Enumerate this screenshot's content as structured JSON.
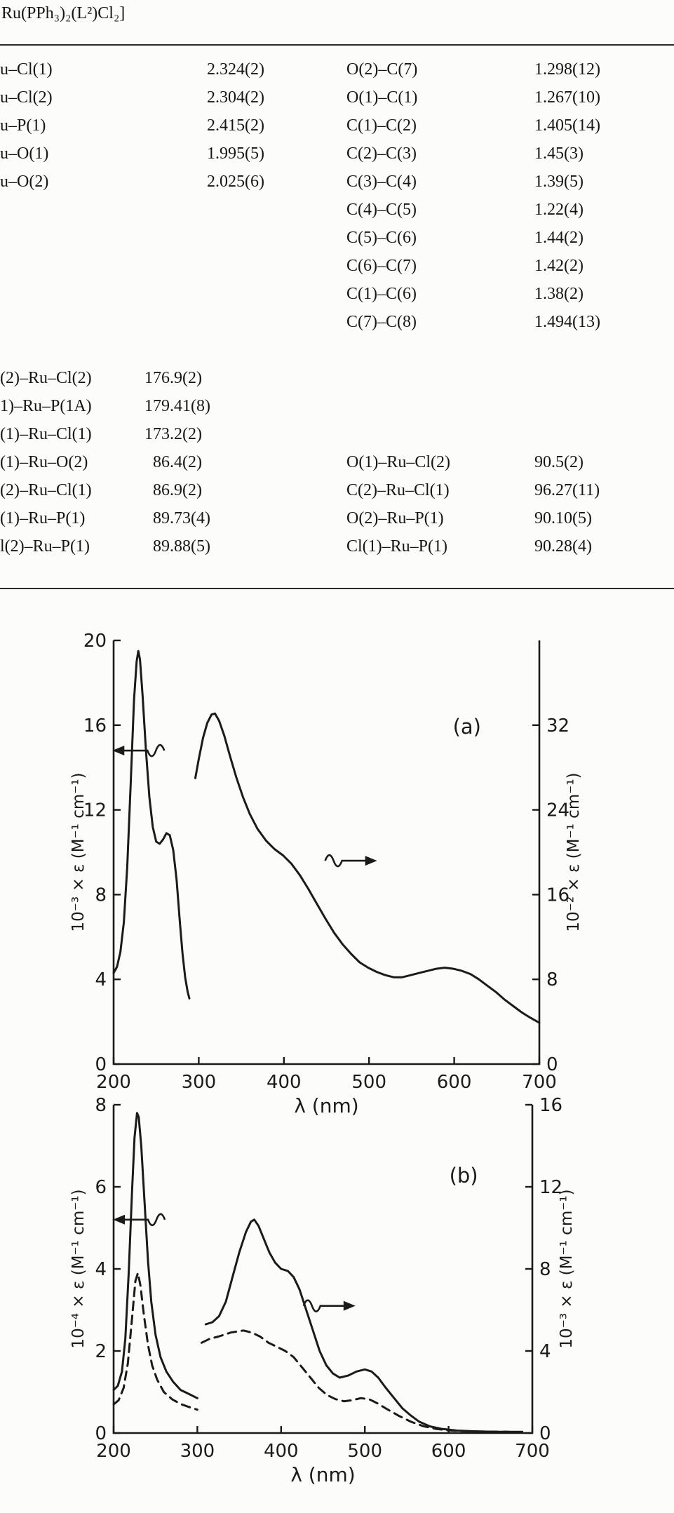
{
  "page": {
    "caption": "Ru(PPh₃)₂(L²)Cl₂]"
  },
  "bond_table": {
    "lengths_rows": [
      {
        "l1": "u–Cl(1)",
        "v1": "2.324(2)",
        "l2": "O(2)–C(7)",
        "v2": "1.298(12)"
      },
      {
        "l1": "u–Cl(2)",
        "v1": "2.304(2)",
        "l2": "O(1)–C(1)",
        "v2": "1.267(10)"
      },
      {
        "l1": "u–P(1)",
        "v1": "2.415(2)",
        "l2": "C(1)–C(2)",
        "v2": "1.405(14)"
      },
      {
        "l1": "u–O(1)",
        "v1": "1.995(5)",
        "l2": "C(2)–C(3)",
        "v2": "1.45(3)"
      },
      {
        "l1": "u–O(2)",
        "v1": "2.025(6)",
        "l2": "C(3)–C(4)",
        "v2": "1.39(5)"
      },
      {
        "l1": "",
        "v1": "",
        "l2": "C(4)–C(5)",
        "v2": "1.22(4)"
      },
      {
        "l1": "",
        "v1": "",
        "l2": "C(5)–C(6)",
        "v2": "1.44(2)"
      },
      {
        "l1": "",
        "v1": "",
        "l2": "C(6)–C(7)",
        "v2": "1.42(2)"
      },
      {
        "l1": "",
        "v1": "",
        "l2": "C(1)–C(6)",
        "v2": "1.38(2)"
      },
      {
        "l1": "",
        "v1": "",
        "l2": "C(7)–C(8)",
        "v2": "1.494(13)"
      }
    ],
    "angles_rows": [
      {
        "l1": "(2)–Ru–Cl(2)",
        "v1": "176.9(2)",
        "l2": "",
        "v2": ""
      },
      {
        "l1": "1)–Ru–P(1A)",
        "v1": "179.41(8)",
        "l2": "",
        "v2": ""
      },
      {
        "l1": "(1)–Ru–Cl(1)",
        "v1": "173.2(2)",
        "l2": "",
        "v2": ""
      },
      {
        "l1": "(1)–Ru–O(2)",
        "v1": " 86.4(2)",
        "l2": "O(1)–Ru–Cl(2)",
        "v2": "90.5(2)"
      },
      {
        "l1": "(2)–Ru–Cl(1)",
        "v1": " 86.9(2)",
        "l2": "C(2)–Ru–Cl(1)",
        "v2": "96.27(11)"
      },
      {
        "l1": "(1)–Ru–P(1)",
        "v1": " 89.73(4)",
        "l2": "O(2)–Ru–P(1)",
        "v2": "90.10(5)"
      },
      {
        "l1": "l(2)–Ru–P(1)",
        "v1": " 89.88(5)",
        "l2": "Cl(1)–Ru–P(1)",
        "v2": "90.28(4)"
      }
    ]
  },
  "chart_data": [
    {
      "type": "line",
      "x_axis": {
        "label": "λ (nm)",
        "lim": [
          200,
          700
        ],
        "ticks": [
          200,
          300,
          400,
          500,
          600,
          700
        ]
      },
      "left_axis": {
        "label": "10⁻³ × ε (M⁻¹ cm⁻¹)",
        "lim": [
          0,
          20
        ],
        "ticks": [
          0,
          4,
          8,
          12,
          16,
          20
        ]
      },
      "right_axis": {
        "label": "10⁻² × ε (M⁻¹ cm⁻¹)",
        "lim": [
          0,
          40
        ],
        "ticks": [
          0,
          8,
          16,
          24,
          32
        ]
      },
      "series": [
        {
          "name": "uv-band-left-scale",
          "axis": "left",
          "style": "solid",
          "points": [
            [
              200,
              4.3
            ],
            [
              204,
              4.6
            ],
            [
              208,
              5.3
            ],
            [
              212,
              6.7
            ],
            [
              216,
              9.3
            ],
            [
              220,
              13.2
            ],
            [
              224,
              17.2
            ],
            [
              227,
              19.0
            ],
            [
              229,
              19.5
            ],
            [
              231,
              19.1
            ],
            [
              234,
              17.4
            ],
            [
              238,
              14.8
            ],
            [
              242,
              12.6
            ],
            [
              246,
              11.2
            ],
            [
              250,
              10.5
            ],
            [
              254,
              10.4
            ],
            [
              258,
              10.6
            ],
            [
              262,
              10.9
            ],
            [
              266,
              10.8
            ],
            [
              270,
              10.1
            ],
            [
              274,
              8.7
            ],
            [
              278,
              6.6
            ],
            [
              281,
              5.2
            ],
            [
              284,
              4.1
            ],
            [
              287,
              3.4
            ],
            [
              289,
              3.1
            ]
          ]
        },
        {
          "name": "vis-band-right-scale",
          "axis": "right",
          "style": "solid",
          "points": [
            [
              296,
              27.0
            ],
            [
              300,
              28.8
            ],
            [
              305,
              30.8
            ],
            [
              310,
              32.2
            ],
            [
              315,
              33.0
            ],
            [
              319,
              33.1
            ],
            [
              324,
              32.4
            ],
            [
              330,
              31.0
            ],
            [
              337,
              29.0
            ],
            [
              344,
              27.1
            ],
            [
              352,
              25.2
            ],
            [
              360,
              23.6
            ],
            [
              369,
              22.2
            ],
            [
              379,
              21.1
            ],
            [
              389,
              20.3
            ],
            [
              399,
              19.7
            ],
            [
              409,
              18.9
            ],
            [
              419,
              17.8
            ],
            [
              429,
              16.5
            ],
            [
              439,
              15.1
            ],
            [
              449,
              13.7
            ],
            [
              459,
              12.4
            ],
            [
              469,
              11.3
            ],
            [
              479,
              10.4
            ],
            [
              489,
              9.6
            ],
            [
              499,
              9.1
            ],
            [
              509,
              8.7
            ],
            [
              519,
              8.4
            ],
            [
              529,
              8.2
            ],
            [
              539,
              8.2
            ],
            [
              549,
              8.4
            ],
            [
              559,
              8.6
            ],
            [
              569,
              8.8
            ],
            [
              579,
              9.0
            ],
            [
              589,
              9.1
            ],
            [
              599,
              9.0
            ],
            [
              609,
              8.8
            ],
            [
              619,
              8.5
            ],
            [
              629,
              8.0
            ],
            [
              639,
              7.4
            ],
            [
              649,
              6.8
            ],
            [
              659,
              6.1
            ],
            [
              669,
              5.5
            ],
            [
              679,
              4.9
            ],
            [
              689,
              4.4
            ],
            [
              700,
              3.9
            ]
          ]
        }
      ],
      "annotations": [
        {
          "type": "panel-label",
          "text": "(a)",
          "x": 615,
          "y": 15.6
        },
        {
          "type": "wave-arrow-left",
          "x": 220,
          "y": 14.8
        },
        {
          "type": "wave-arrow-right",
          "x": 488,
          "y": 9.6
        }
      ]
    },
    {
      "type": "line",
      "x_axis": {
        "label": "λ (nm)",
        "lim": [
          200,
          700
        ],
        "ticks": [
          200,
          300,
          400,
          500,
          600,
          700
        ]
      },
      "left_axis": {
        "label": "10⁻⁴ × ε (M⁻¹ cm⁻¹)",
        "lim": [
          0,
          8
        ],
        "ticks": [
          0,
          2,
          4,
          6,
          8
        ]
      },
      "right_axis": {
        "label": "10⁻³ × ε (M⁻¹ cm⁻¹)",
        "lim": [
          0,
          16
        ],
        "ticks": [
          0,
          4,
          8,
          12,
          16
        ]
      },
      "series": [
        {
          "name": "uv-band-solid-left-scale",
          "axis": "left",
          "style": "solid",
          "points": [
            [
              200,
              1.05
            ],
            [
              205,
              1.15
            ],
            [
              210,
              1.5
            ],
            [
              214,
              2.3
            ],
            [
              218,
              3.9
            ],
            [
              222,
              5.9
            ],
            [
              225,
              7.2
            ],
            [
              228,
              7.8
            ],
            [
              230,
              7.7
            ],
            [
              233,
              7.0
            ],
            [
              237,
              5.6
            ],
            [
              241,
              4.2
            ],
            [
              245,
              3.2
            ],
            [
              250,
              2.4
            ],
            [
              256,
              1.85
            ],
            [
              263,
              1.5
            ],
            [
              271,
              1.25
            ],
            [
              280,
              1.05
            ],
            [
              290,
              0.95
            ],
            [
              300,
              0.85
            ]
          ]
        },
        {
          "name": "uv-band-dashed-left-scale",
          "axis": "left",
          "style": "dashed",
          "points": [
            [
              200,
              0.7
            ],
            [
              206,
              0.8
            ],
            [
              212,
              1.1
            ],
            [
              217,
              1.7
            ],
            [
              222,
              2.8
            ],
            [
              226,
              3.7
            ],
            [
              229,
              3.9
            ],
            [
              232,
              3.6
            ],
            [
              236,
              2.9
            ],
            [
              241,
              2.15
            ],
            [
              246,
              1.65
            ],
            [
              252,
              1.3
            ],
            [
              260,
              1.0
            ],
            [
              270,
              0.82
            ],
            [
              281,
              0.7
            ],
            [
              292,
              0.62
            ],
            [
              300,
              0.57
            ]
          ]
        },
        {
          "name": "vis-band-solid-right-scale",
          "axis": "right",
          "style": "solid",
          "points": [
            [
              310,
              5.3
            ],
            [
              318,
              5.4
            ],
            [
              326,
              5.7
            ],
            [
              334,
              6.4
            ],
            [
              342,
              7.6
            ],
            [
              350,
              8.8
            ],
            [
              358,
              9.8
            ],
            [
              364,
              10.3
            ],
            [
              368,
              10.4
            ],
            [
              373,
              10.1
            ],
            [
              379,
              9.5
            ],
            [
              386,
              8.8
            ],
            [
              393,
              8.3
            ],
            [
              400,
              8.0
            ],
            [
              408,
              7.9
            ],
            [
              415,
              7.6
            ],
            [
              422,
              7.0
            ],
            [
              430,
              6.0
            ],
            [
              438,
              5.0
            ],
            [
              446,
              4.0
            ],
            [
              454,
              3.3
            ],
            [
              462,
              2.9
            ],
            [
              470,
              2.7
            ],
            [
              480,
              2.8
            ],
            [
              490,
              3.0
            ],
            [
              500,
              3.1
            ],
            [
              508,
              3.0
            ],
            [
              516,
              2.7
            ],
            [
              525,
              2.2
            ],
            [
              535,
              1.7
            ],
            [
              545,
              1.2
            ],
            [
              555,
              0.85
            ],
            [
              565,
              0.55
            ],
            [
              578,
              0.32
            ],
            [
              592,
              0.2
            ],
            [
              610,
              0.12
            ],
            [
              635,
              0.08
            ],
            [
              660,
              0.06
            ],
            [
              688,
              0.06
            ]
          ]
        },
        {
          "name": "vis-band-dashed-right-scale",
          "axis": "right",
          "style": "dashed",
          "points": [
            [
              305,
              4.4
            ],
            [
              315,
              4.6
            ],
            [
              325,
              4.7
            ],
            [
              340,
              4.9
            ],
            [
              355,
              5.0
            ],
            [
              365,
              4.9
            ],
            [
              375,
              4.7
            ],
            [
              385,
              4.4
            ],
            [
              395,
              4.2
            ],
            [
              405,
              4.0
            ],
            [
              415,
              3.7
            ],
            [
              425,
              3.2
            ],
            [
              435,
              2.7
            ],
            [
              445,
              2.2
            ],
            [
              455,
              1.85
            ],
            [
              465,
              1.65
            ],
            [
              475,
              1.55
            ],
            [
              485,
              1.6
            ],
            [
              495,
              1.7
            ],
            [
              505,
              1.65
            ],
            [
              515,
              1.45
            ],
            [
              525,
              1.2
            ],
            [
              540,
              0.85
            ],
            [
              555,
              0.55
            ],
            [
              570,
              0.33
            ],
            [
              585,
              0.2
            ],
            [
              600,
              0.13
            ],
            [
              620,
              0.09
            ],
            [
              645,
              0.07
            ],
            [
              672,
              0.06
            ]
          ]
        }
      ],
      "annotations": [
        {
          "type": "panel-label",
          "text": "(b)",
          "x": 618,
          "y": 6.1
        },
        {
          "type": "wave-arrow-left",
          "x": 221,
          "y": 5.2
        },
        {
          "type": "wave-arrow-right",
          "x": 467,
          "y": 3.1
        }
      ]
    }
  ]
}
